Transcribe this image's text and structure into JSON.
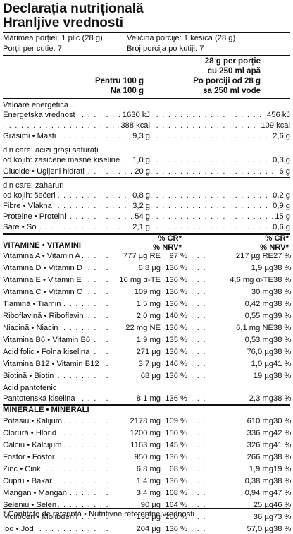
{
  "title": {
    "line1": "Declarația nutrițională",
    "line2": "Hranljive vrednosti"
  },
  "serving": {
    "size_ro": "Mărimea porției: 1 plic (28 g)",
    "size_sr": "Veličina porcije: 1 kesica (28 g)",
    "count_ro": "Porții per cutie: 7",
    "count_sr": "Broj porcija po kutiji: 7"
  },
  "headers": {
    "per100_l1": "Pentru 100 g",
    "per100_l2": "Na 100 g",
    "perserv_l1": "28 g per porție",
    "perserv_l2": "cu 250 ml apă",
    "perserv_l3": "Po porciji od 28 g",
    "perserv_l4": "sa 250 ml vode",
    "cr_l1": "% CR*",
    "cr_l2": "% NRV*"
  },
  "nutrition_rows": [
    {
      "label": "Valoare energetica",
      "v1": "",
      "v2": "",
      "dots": false
    },
    {
      "label": "Energetska vrednost",
      "v1": "1630 kJ",
      "v2": "456 kJ",
      "dots": true
    },
    {
      "label": "",
      "v1": "388 kcal",
      "v2": "109 kcal",
      "dots": true
    },
    {
      "label": "Grăsimi • Masti",
      "v1": "9,3 g",
      "v2": "2,6 g",
      "dots": true
    },
    {
      "label": "din care: acizi grași saturați",
      "v1": "",
      "v2": "",
      "dots": false
    },
    {
      "label": "od kojih: zasićene masne kiseline",
      "v1": "1,0 g",
      "v2": "0,3 g",
      "dots": true
    },
    {
      "label": "Glucide • Ugljeni hidrati",
      "v1": "20 g",
      "v2": "6 g",
      "dots": true
    },
    {
      "label": "din care: zaharuri",
      "v1": "",
      "v2": "",
      "dots": false
    },
    {
      "label": "od kojih: šećeri",
      "v1": "0,8 g",
      "v2": "0,2 g",
      "dots": true
    },
    {
      "label": "Fibre • Vlakna",
      "v1": "3,2 g",
      "v2": "0,9 g",
      "dots": true
    },
    {
      "label": "Proteine • Proteini",
      "v1": "54 g",
      "v2": "15 g",
      "dots": true
    },
    {
      "label": "Sare • So",
      "v1": "2,1 g",
      "v2": "0,6 g",
      "dots": true
    }
  ],
  "vitamins_heading": "VITAMINE • VITAMINI",
  "vitamins": [
    {
      "label": "Vitamina A • Vitamin A",
      "v1": "777 µg RE",
      "p1": "97 %",
      "v2": "217 µg RE",
      "p2": "27 %"
    },
    {
      "label": "Vitamina D • Vitamin D",
      "v1": "6,8 µg",
      "p1": "136 %",
      "v2": "1,9 µg",
      "p2": "38 %"
    },
    {
      "label": "Vitamina E • Vitamin E",
      "v1": "16 mg α-TE",
      "p1": "136 %",
      "v2": "4,6 mg α-TE",
      "p2": "38 %"
    },
    {
      "label": "Vitamina C • Vitamin C",
      "v1": "109 mg",
      "p1": "136 %",
      "v2": "30 mg",
      "p2": "38 %"
    },
    {
      "label": "Tiamină • Tiamin",
      "v1": "1,5 mg",
      "p1": "136 %",
      "v2": "0,42 mg",
      "p2": "38 %"
    },
    {
      "label": "Riboflavină • Riboflavin",
      "v1": "2,0 mg",
      "p1": "140 %",
      "v2": "0,55 mg",
      "p2": "39 %"
    },
    {
      "label": "Niacină • Niacin",
      "v1": "22 mg NE",
      "p1": "136 %",
      "v2": "6,1 mg NE",
      "p2": "38 %"
    },
    {
      "label": "Vitamina B6 • Vitamin B6",
      "v1": "1,9 mg",
      "p1": "135 %",
      "v2": "0,53 mg",
      "p2": "38 %"
    },
    {
      "label": "Acid folic • Folna kiselina",
      "v1": "271 µg",
      "p1": "136 %",
      "v2": "76,0 µg",
      "p2": "38 %"
    },
    {
      "label": "Vitamina B12 • Vitamin B12",
      "v1": "3,7 µg",
      "p1": "146 %",
      "v2": "1,0 µg",
      "p2": "41 %"
    },
    {
      "label": "Biotină • Biotin",
      "v1": "68 µg",
      "p1": "136 %",
      "v2": "19 µg",
      "p2": "38 %"
    }
  ],
  "pantothenic": {
    "label1": "Acid pantotenic",
    "label2": "Pantotenska kiselina",
    "v1": "8,1 mg",
    "p1": "136 %",
    "v2": "2,3 mg",
    "p2": "38 %"
  },
  "minerals_heading": "MINERALE • MINERALI",
  "minerals": [
    {
      "label": "Potasiu • Kalijum",
      "v1": "2178 mg",
      "p1": "109 %",
      "v2": "610 mg",
      "p2": "30 %"
    },
    {
      "label": "Clorură • Hlorid",
      "v1": "1200 mg",
      "p1": "150 %",
      "v2": "336 mg",
      "p2": "42 %"
    },
    {
      "label": "Calciu • Kalcijum",
      "v1": "1163 mg",
      "p1": "145 %",
      "v2": "326 mg",
      "p2": "41 %"
    },
    {
      "label": "Fosfor • Fosfor",
      "v1": "950 mg",
      "p1": "136 %",
      "v2": "266 mg",
      "p2": "38 %"
    },
    {
      "label": "Zinc • Cink",
      "v1": "6,8 mg",
      "p1": "68 %",
      "v2": "1,9 mg",
      "p2": "19 %"
    },
    {
      "label": "Cupru • Bakar",
      "v1": "1,4 mg",
      "p1": "136 %",
      "v2": "0,38 mg",
      "p2": "38 %"
    },
    {
      "label": "Mangan • Mangan",
      "v1": "3,4 mg",
      "p1": "168 %",
      "v2": "0,94 mg",
      "p2": "47 %"
    },
    {
      "label": "Seleniu • Selen",
      "v1": "90 µg",
      "p1": "164 %",
      "v2": "25 µg",
      "p2": "46 %"
    },
    {
      "label": "Molibden • Molibden",
      "v1": "130 µg",
      "p1": "260 %",
      "v2": "36 µg",
      "p2": "73 %"
    },
    {
      "label": "Iod • Jod",
      "v1": "204 µg",
      "p1": "136 %",
      "v2": "57,0 µg",
      "p2": "38 %"
    }
  ],
  "footnote": "* Cantitate de referință • Nutritivne referentne vrednosti"
}
